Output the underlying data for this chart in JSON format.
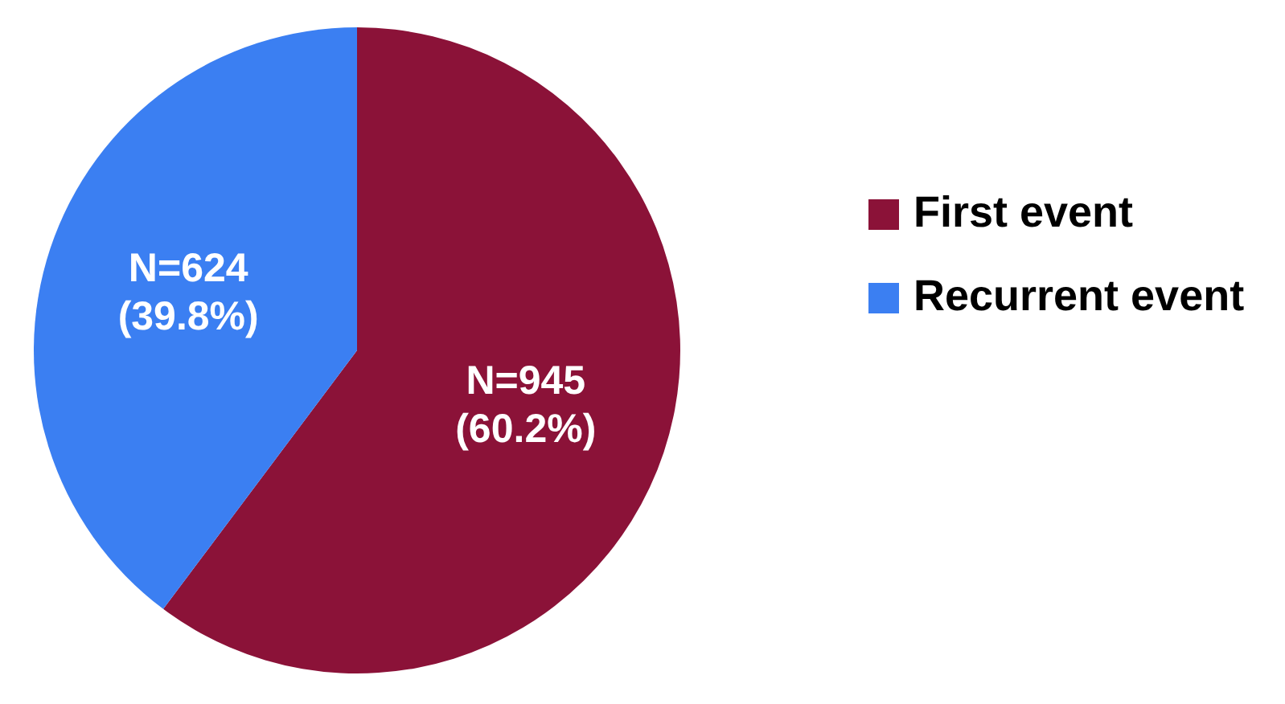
{
  "chart_data": {
    "type": "pie",
    "categories": [
      "First event",
      "Recurrent event"
    ],
    "values": [
      945,
      624
    ],
    "colors": [
      "#8b1238",
      "#3b7ff2"
    ],
    "value_labels": [
      "N=945\n(60.2%)",
      "N=624\n(39.8%)"
    ],
    "legend": "right"
  }
}
